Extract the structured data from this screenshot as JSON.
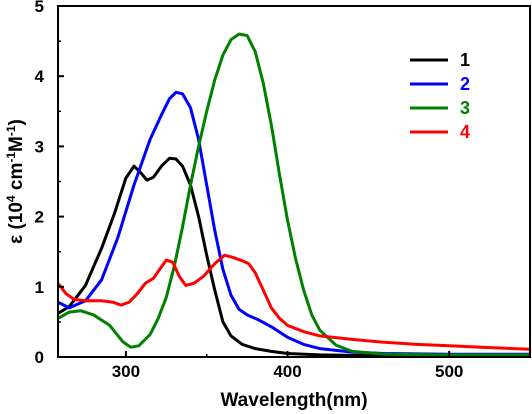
{
  "chart_data": {
    "type": "line",
    "title": "",
    "xlabel": "Wavelength(nm)",
    "ylabel": {
      "base": "ε (10",
      "sup1": "4",
      "mid": " cm",
      "sup2": "-1",
      "mid2": "M",
      "sup3": "-1",
      "end": ")"
    },
    "xlim": [
      258,
      550
    ],
    "ylim": [
      0,
      5
    ],
    "xticks": [
      300,
      400,
      500
    ],
    "yticks": [
      0,
      1,
      2,
      3,
      4,
      5
    ],
    "legend_position": "top-right",
    "series": [
      {
        "name": "1",
        "color": "#000000",
        "points": [
          [
            258,
            0.62
          ],
          [
            265,
            0.72
          ],
          [
            275,
            1.02
          ],
          [
            285,
            1.55
          ],
          [
            293,
            2.05
          ],
          [
            300,
            2.55
          ],
          [
            305,
            2.72
          ],
          [
            309,
            2.63
          ],
          [
            313,
            2.52
          ],
          [
            317,
            2.56
          ],
          [
            322,
            2.72
          ],
          [
            327,
            2.83
          ],
          [
            331,
            2.82
          ],
          [
            335,
            2.72
          ],
          [
            340,
            2.45
          ],
          [
            345,
            2.0
          ],
          [
            350,
            1.45
          ],
          [
            355,
            0.95
          ],
          [
            360,
            0.5
          ],
          [
            365,
            0.3
          ],
          [
            372,
            0.18
          ],
          [
            380,
            0.12
          ],
          [
            390,
            0.08
          ],
          [
            400,
            0.05
          ],
          [
            420,
            0.03
          ],
          [
            450,
            0.02
          ],
          [
            500,
            0.02
          ],
          [
            550,
            0.02
          ]
        ]
      },
      {
        "name": "2",
        "color": "#0000ff",
        "points": [
          [
            258,
            0.78
          ],
          [
            265,
            0.7
          ],
          [
            275,
            0.8
          ],
          [
            285,
            1.1
          ],
          [
            295,
            1.7
          ],
          [
            305,
            2.45
          ],
          [
            315,
            3.1
          ],
          [
            322,
            3.45
          ],
          [
            327,
            3.68
          ],
          [
            331,
            3.77
          ],
          [
            335,
            3.75
          ],
          [
            340,
            3.55
          ],
          [
            345,
            3.1
          ],
          [
            350,
            2.45
          ],
          [
            355,
            1.8
          ],
          [
            360,
            1.25
          ],
          [
            365,
            0.88
          ],
          [
            370,
            0.68
          ],
          [
            375,
            0.6
          ],
          [
            382,
            0.53
          ],
          [
            390,
            0.43
          ],
          [
            400,
            0.28
          ],
          [
            410,
            0.18
          ],
          [
            420,
            0.12
          ],
          [
            440,
            0.07
          ],
          [
            460,
            0.05
          ],
          [
            500,
            0.04
          ],
          [
            550,
            0.04
          ]
        ]
      },
      {
        "name": "3",
        "color": "#008000",
        "points": [
          [
            258,
            0.55
          ],
          [
            265,
            0.64
          ],
          [
            272,
            0.66
          ],
          [
            280,
            0.6
          ],
          [
            290,
            0.45
          ],
          [
            298,
            0.22
          ],
          [
            303,
            0.14
          ],
          [
            308,
            0.16
          ],
          [
            315,
            0.32
          ],
          [
            320,
            0.55
          ],
          [
            325,
            0.85
          ],
          [
            330,
            1.3
          ],
          [
            335,
            1.85
          ],
          [
            340,
            2.45
          ],
          [
            345,
            3.0
          ],
          [
            350,
            3.5
          ],
          [
            355,
            3.95
          ],
          [
            360,
            4.3
          ],
          [
            365,
            4.52
          ],
          [
            370,
            4.6
          ],
          [
            375,
            4.58
          ],
          [
            380,
            4.35
          ],
          [
            385,
            3.9
          ],
          [
            390,
            3.3
          ],
          [
            395,
            2.6
          ],
          [
            400,
            1.95
          ],
          [
            405,
            1.4
          ],
          [
            410,
            0.95
          ],
          [
            415,
            0.6
          ],
          [
            420,
            0.38
          ],
          [
            430,
            0.17
          ],
          [
            440,
            0.08
          ],
          [
            460,
            0.04
          ],
          [
            500,
            0.03
          ],
          [
            550,
            0.03
          ]
        ]
      },
      {
        "name": "4",
        "color": "#ff0000",
        "points": [
          [
            258,
            1.05
          ],
          [
            263,
            0.9
          ],
          [
            268,
            0.82
          ],
          [
            275,
            0.8
          ],
          [
            285,
            0.8
          ],
          [
            292,
            0.78
          ],
          [
            297,
            0.74
          ],
          [
            302,
            0.78
          ],
          [
            307,
            0.9
          ],
          [
            312,
            1.05
          ],
          [
            317,
            1.12
          ],
          [
            321,
            1.25
          ],
          [
            325,
            1.38
          ],
          [
            329,
            1.35
          ],
          [
            333,
            1.15
          ],
          [
            337,
            1.02
          ],
          [
            342,
            1.05
          ],
          [
            348,
            1.15
          ],
          [
            355,
            1.33
          ],
          [
            361,
            1.45
          ],
          [
            366,
            1.42
          ],
          [
            372,
            1.37
          ],
          [
            376,
            1.33
          ],
          [
            380,
            1.2
          ],
          [
            385,
            0.95
          ],
          [
            390,
            0.7
          ],
          [
            395,
            0.55
          ],
          [
            400,
            0.45
          ],
          [
            410,
            0.36
          ],
          [
            420,
            0.3
          ],
          [
            440,
            0.25
          ],
          [
            460,
            0.21
          ],
          [
            480,
            0.18
          ],
          [
            500,
            0.16
          ],
          [
            520,
            0.14
          ],
          [
            540,
            0.12
          ],
          [
            550,
            0.11
          ]
        ]
      }
    ]
  }
}
